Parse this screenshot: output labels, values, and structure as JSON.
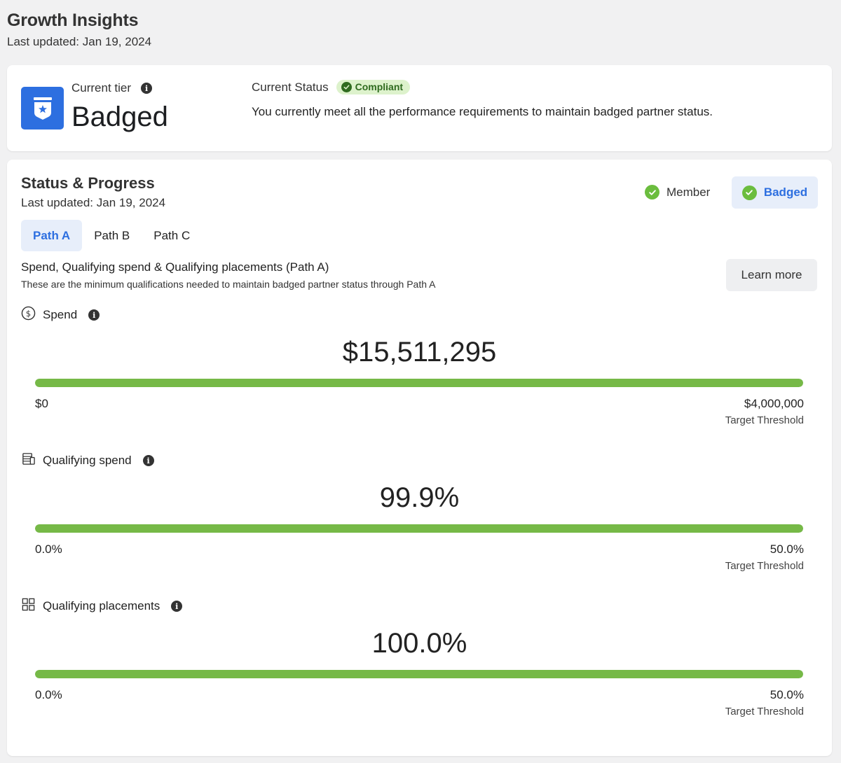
{
  "page": {
    "title": "Growth Insights",
    "last_updated": "Last updated: Jan 19, 2024"
  },
  "tier_card": {
    "label": "Current tier",
    "value": "Badged",
    "status_label": "Current Status",
    "status_badge": "Compliant",
    "status_description": "You currently meet all the performance requirements to maintain badged partner status."
  },
  "progress": {
    "title": "Status & Progress",
    "last_updated": "Last updated: Jan 19, 2024",
    "tiers": [
      {
        "label": "Member",
        "achieved": true,
        "selected": false
      },
      {
        "label": "Badged",
        "achieved": true,
        "selected": true
      }
    ],
    "tabs": [
      {
        "label": "Path A",
        "active": true
      },
      {
        "label": "Path B",
        "active": false
      },
      {
        "label": "Path C",
        "active": false
      }
    ],
    "path_title": "Spend, Qualifying spend & Qualifying placements (Path A)",
    "path_description": "These are the minimum qualifications needed to maintain badged partner status through Path A",
    "learn_more_label": "Learn more",
    "metrics": [
      {
        "label": "Spend",
        "icon": "dollar-circle-icon",
        "value": "$15,511,295",
        "min": "$0",
        "max": "$4,000,000",
        "max_label": "Target Threshold",
        "fill_fraction": 1.0
      },
      {
        "label": "Qualifying spend",
        "icon": "stack-icon",
        "value": "99.9%",
        "min": "0.0%",
        "max": "50.0%",
        "max_label": "Target Threshold",
        "fill_fraction": 1.0
      },
      {
        "label": "Qualifying placements",
        "icon": "grid-icon",
        "value": "100.0%",
        "min": "0.0%",
        "max": "50.0%",
        "max_label": "Target Threshold",
        "fill_fraction": 1.0
      }
    ]
  },
  "colors": {
    "accent_blue": "#2d6fe0",
    "progress_green": "#76b947",
    "check_green": "#6bbd3e",
    "compliant_bg": "#ddf2cc",
    "compliant_text": "#2f6b1f"
  }
}
